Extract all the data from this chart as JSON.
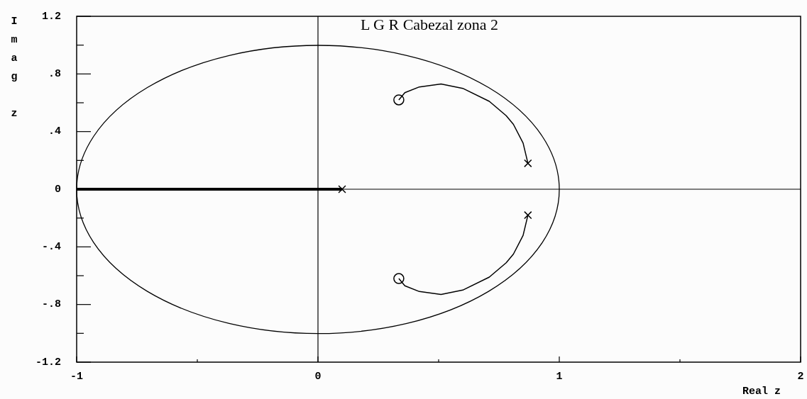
{
  "chart_data": {
    "type": "line",
    "title": "L G R Cabezal zona 2",
    "xlabel": "Real z",
    "ylabel": "Imag z",
    "xlim": [
      -1,
      2
    ],
    "ylim": [
      -1.2,
      1.2
    ],
    "xticks": [
      -1,
      {
        "value": -0.5,
        "label": null
      },
      0,
      {
        "value": 0.5,
        "label": null
      },
      1,
      {
        "value": 1.5,
        "label": null
      },
      2
    ],
    "yticks": [
      {
        "value": -1.2,
        "label": "-1.2"
      },
      {
        "value": -1,
        "label": null
      },
      {
        "value": -0.8,
        "label": "-.8"
      },
      {
        "value": -0.6,
        "label": null
      },
      {
        "value": -0.4,
        "label": "-.4"
      },
      {
        "value": -0.2,
        "label": null
      },
      0,
      {
        "value": 0.2,
        "label": null
      },
      {
        "value": 0.4,
        "label": ".4"
      },
      {
        "value": 0.6,
        "label": null
      },
      {
        "value": 0.8,
        "label": ".8"
      },
      {
        "value": 1,
        "label": null
      },
      1.2
    ],
    "grid": false,
    "legend": false,
    "series": [
      {
        "color": "#000000",
        "marker": "none",
        "x": [
          0.335,
          0.36,
          0.42,
          0.51,
          0.6,
          0.71,
          0.78,
          0.81,
          0.85,
          0.87
        ],
        "values": [
          0.62,
          0.67,
          0.71,
          0.73,
          0.7,
          0.61,
          0.51,
          0.45,
          0.32,
          0.18
        ]
      },
      {
        "color": "#000000",
        "marker": "none",
        "x": [
          0.335,
          0.36,
          0.42,
          0.51,
          0.6,
          0.71,
          0.78,
          0.81,
          0.85,
          0.87
        ],
        "values": [
          -0.62,
          -0.67,
          -0.71,
          -0.73,
          -0.7,
          -0.61,
          -0.51,
          -0.45,
          -0.32,
          -0.18
        ]
      },
      {
        "color": "#000000",
        "marker": "none",
        "x": [
          -1,
          0.1
        ],
        "values": [
          0,
          0
        ]
      },
      {
        "type": "scatter",
        "color": "#000000",
        "marker": "cross",
        "x": [
          0.1,
          0.87,
          0.87
        ],
        "values": [
          0,
          0.18,
          -0.18
        ]
      },
      {
        "type": "scatter",
        "color": "#000000",
        "marker": "circle",
        "x": [
          0.335,
          0.335
        ],
        "values": [
          0.62,
          -0.62
        ]
      }
    ]
  }
}
